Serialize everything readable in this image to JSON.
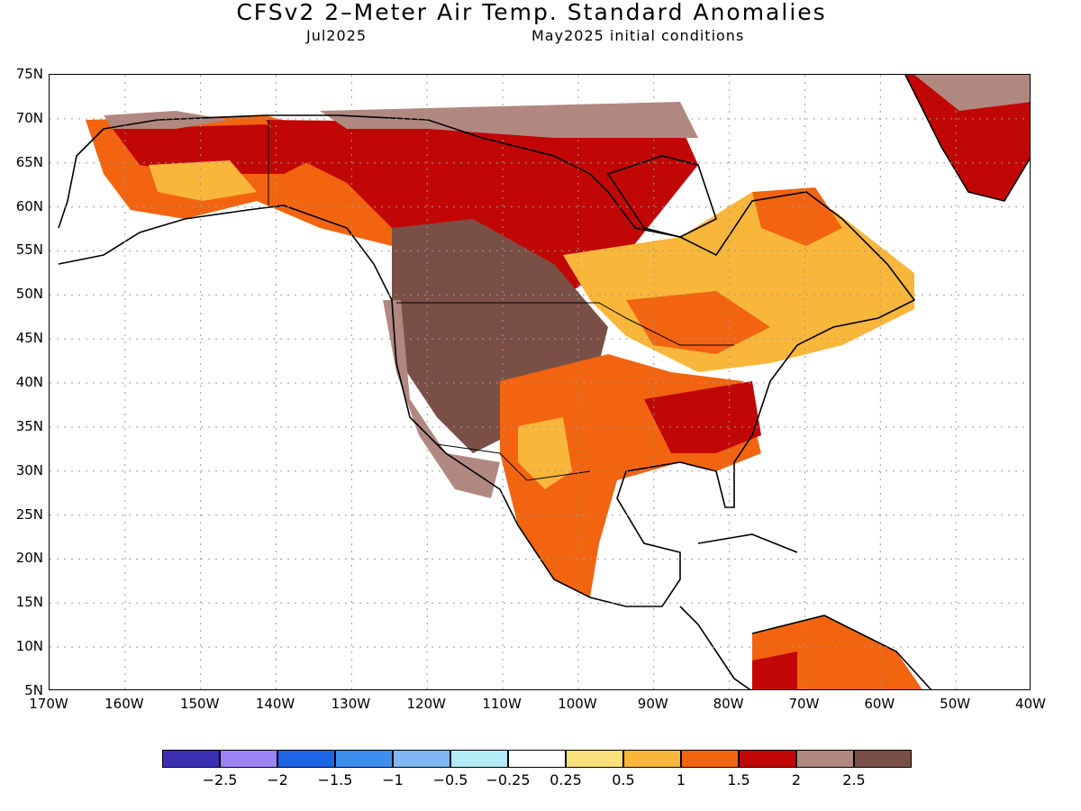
{
  "title": "CFSv2 2–Meter Air Temp. Standard Anomalies",
  "subtitle_month": "Jul2025",
  "subtitle_init": "May2025 initial conditions",
  "lat_labels": [
    "75N",
    "70N",
    "65N",
    "60N",
    "55N",
    "50N",
    "45N",
    "40N",
    "35N",
    "30N",
    "25N",
    "20N",
    "15N",
    "10N",
    "5N"
  ],
  "lon_labels": [
    "170W",
    "160W",
    "150W",
    "140W",
    "130W",
    "120W",
    "110W",
    "100W",
    "90W",
    "80W",
    "70W",
    "60W",
    "50W",
    "40W"
  ],
  "legend": {
    "colors": [
      "#3a2fb5",
      "#9b85f5",
      "#1f63e6",
      "#3d8ef0",
      "#7fb8f5",
      "#b3ecf7",
      "#ffffff",
      "#fbe17c",
      "#f8b63a",
      "#f26410",
      "#c10706",
      "#b08880",
      "#7a5046"
    ],
    "ticks": [
      "−2.5",
      "−2",
      "−1.5",
      "−1",
      "−0.5",
      "−0.25",
      "0.25",
      "0.5",
      "1",
      "1.5",
      "2",
      "2.5"
    ]
  },
  "colors": {
    "land_outline": "#000000",
    "grid": "#9a9a9a"
  }
}
